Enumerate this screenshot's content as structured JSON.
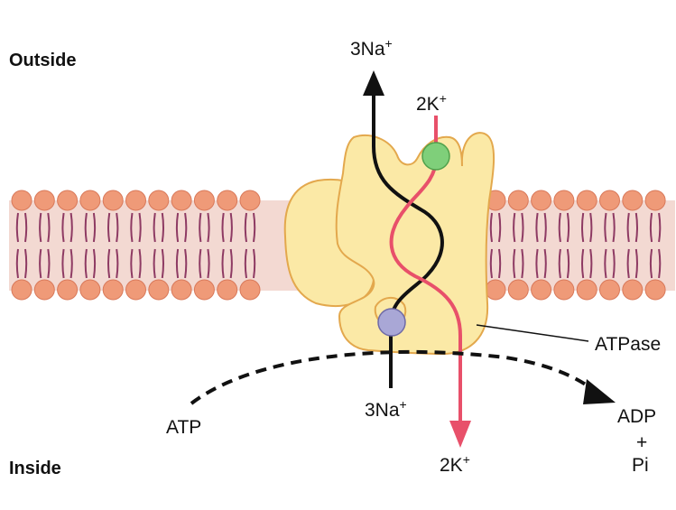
{
  "labels": {
    "outside": "Outside",
    "inside": "Inside",
    "na_out": "3Na",
    "na_in": "3Na",
    "k_out": "2K",
    "k_in": "2K",
    "superscript": "+",
    "atpase": "ATPase",
    "atp": "ATP",
    "adp": "ADP",
    "plus": "+",
    "pi": "Pi"
  },
  "colors": {
    "membrane_band": "#f3d9d2",
    "lipid_head": "#ef9a78",
    "lipid_tail": "#8e3a63",
    "protein_fill": "#fbe9a6",
    "protein_stroke": "#e3a84d",
    "sodium_path": "#111111",
    "potassium_path": "#e8506a",
    "sodium_site": "#a9a7d6",
    "potassium_site": "#7fcf7a",
    "atp_arrow": "#111111"
  }
}
